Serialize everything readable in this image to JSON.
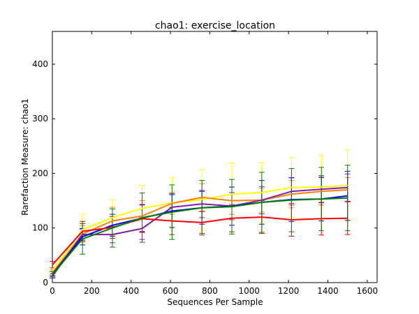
{
  "chart_data": {
    "type": "line",
    "title": "chao1: exercise_location",
    "xlabel": "Sequences Per Sample",
    "ylabel": "Rarefaction Measure: chao1",
    "xlim": [
      0,
      1650
    ],
    "ylim": [
      0,
      460
    ],
    "xticks": [
      0,
      200,
      400,
      600,
      800,
      1000,
      1200,
      1400,
      1600
    ],
    "yticks": [
      0,
      100,
      200,
      300,
      400
    ],
    "grid": false,
    "legend": "none",
    "x": [
      1,
      153,
      305,
      456,
      608,
      760,
      912,
      1064,
      1215,
      1367,
      1500
    ],
    "series": [
      {
        "color": "#ffff00",
        "values": [
          22,
          97,
          119,
          136,
          146,
          152,
          162,
          165,
          174,
          175,
          178
        ],
        "err": [
          5,
          28,
          33,
          42,
          46,
          55,
          57,
          55,
          55,
          58,
          65
        ]
      },
      {
        "color": "#ff7f00",
        "values": [
          18,
          89,
          113,
          122,
          145,
          156,
          150,
          151,
          162,
          167,
          170
        ],
        "err": [
          5,
          15,
          25,
          28,
          20,
          25,
          25,
          22,
          25,
          25,
          22
        ]
      },
      {
        "color": "#7f1fa6",
        "values": [
          12,
          88,
          88,
          99,
          138,
          144,
          140,
          151,
          167,
          171,
          174
        ],
        "err": [
          4,
          10,
          15,
          20,
          25,
          25,
          25,
          25,
          25,
          25,
          25
        ]
      },
      {
        "color": "#0000ff",
        "values": [
          16,
          84,
          105,
          118,
          131,
          137,
          140,
          147,
          152,
          153,
          159
        ],
        "err": [
          4,
          15,
          20,
          25,
          30,
          30,
          35,
          40,
          40,
          40,
          45
        ]
      },
      {
        "color": "#ff0000",
        "values": [
          33,
          94,
          101,
          117,
          113,
          110,
          118,
          120,
          115,
          117,
          118
        ],
        "err": [
          6,
          18,
          20,
          25,
          25,
          20,
          25,
          30,
          30,
          30,
          30
        ]
      },
      {
        "color": "#007f00",
        "values": [
          15,
          80,
          100,
          119,
          129,
          137,
          139,
          147,
          151,
          153,
          155
        ],
        "err": [
          5,
          28,
          35,
          45,
          50,
          50,
          50,
          55,
          58,
          58,
          60
        ]
      }
    ]
  }
}
